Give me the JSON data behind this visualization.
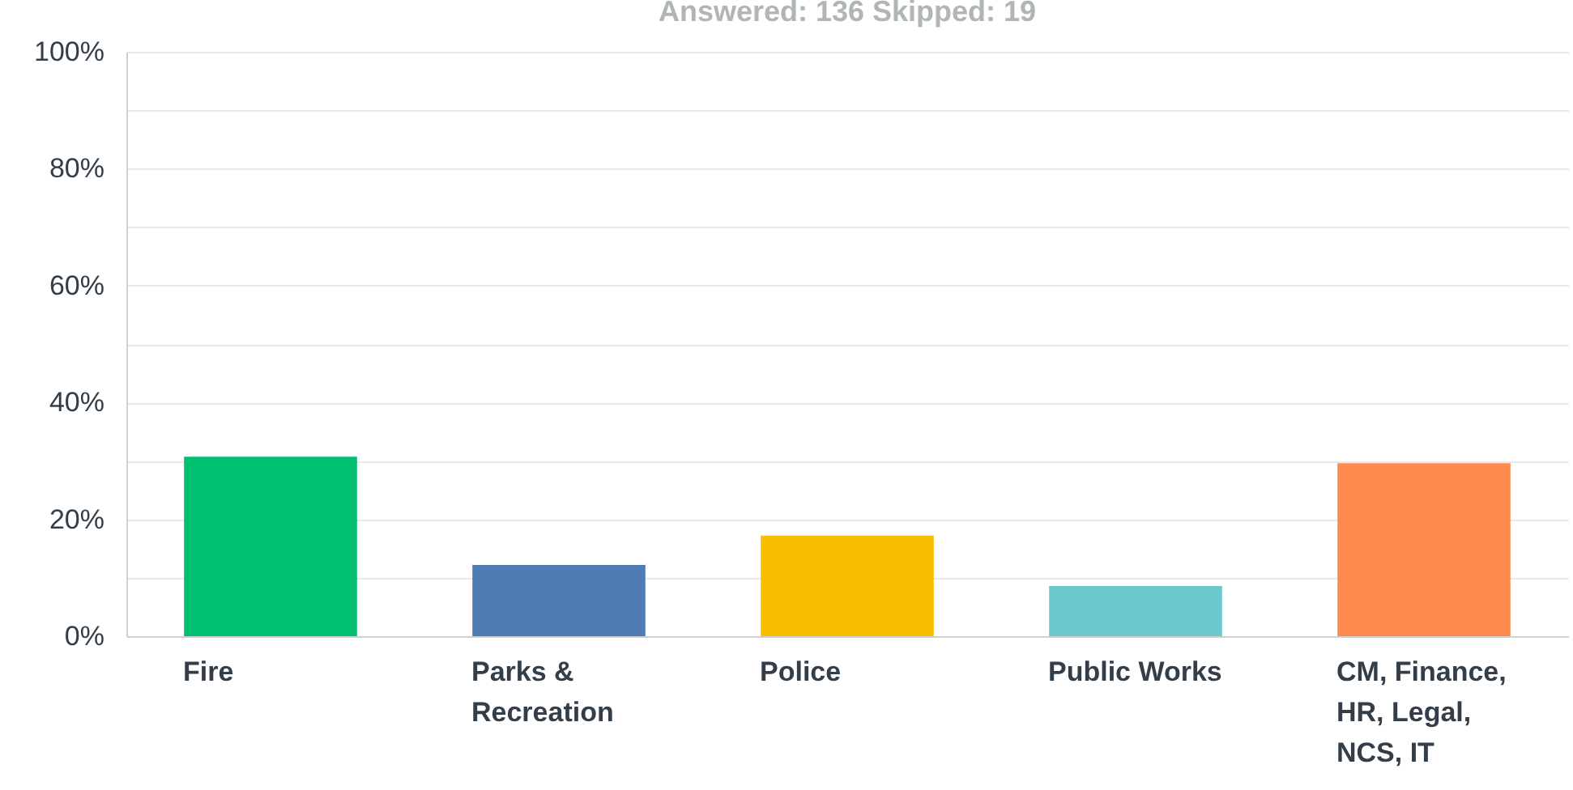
{
  "chart_data": {
    "type": "bar",
    "title": "Answered: 136    Skipped: 19",
    "categories": [
      "Fire",
      "Parks & Recreation",
      "Police",
      "Public Works",
      "CM, Finance, HR, Legal, NCS, IT"
    ],
    "values": [
      30.7,
      12.2,
      17.2,
      8.6,
      29.6
    ],
    "colors": [
      "#00bf6f",
      "#507cb6",
      "#f9be00",
      "#6bc8cd",
      "#ff8b4f"
    ],
    "ylim": [
      0,
      100
    ],
    "yticks": [
      {
        "value": 0,
        "label": "0%"
      },
      {
        "value": 10,
        "label": null
      },
      {
        "value": 20,
        "label": "20%"
      },
      {
        "value": 30,
        "label": null
      },
      {
        "value": 40,
        "label": "40%"
      },
      {
        "value": 50,
        "label": null
      },
      {
        "value": 60,
        "label": "60%"
      },
      {
        "value": 70,
        "label": null
      },
      {
        "value": 80,
        "label": "80%"
      },
      {
        "value": 90,
        "label": null
      },
      {
        "value": 100,
        "label": "100%"
      }
    ],
    "grid": "y"
  }
}
